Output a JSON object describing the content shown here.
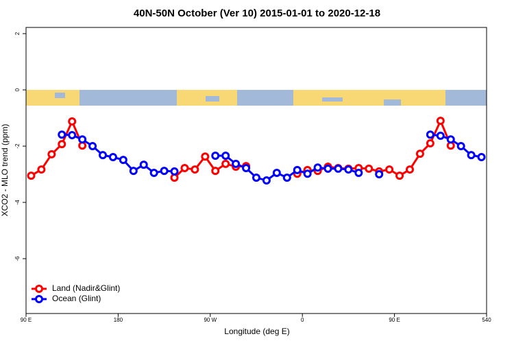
{
  "chart_data": {
    "type": "line",
    "title": "40N-50N October (Ver 10)   2015-01-01 to 2020-12-18",
    "x_label": "Longitude (deg E)",
    "y_label": "XCO2 - MLO trend (ppm)",
    "x": [
      95,
      105,
      115,
      125,
      135,
      145,
      155,
      165,
      175,
      185,
      195,
      205,
      215,
      225,
      235,
      245,
      255,
      265,
      275,
      285,
      295,
      305,
      315,
      325,
      335,
      345,
      355,
      365,
      375,
      385,
      395,
      405,
      415,
      425,
      435,
      445,
      455,
      465,
      475,
      485,
      495,
      505,
      515,
      525,
      535
    ],
    "series": [
      {
        "name": "Land (Nadir&Glint)",
        "color": "#ff0000",
        "values": [
          -3.05,
          -2.83,
          -2.29,
          -1.93,
          -1.12,
          -1.98,
          null,
          null,
          null,
          null,
          null,
          null,
          null,
          null,
          -3.12,
          -2.78,
          -2.83,
          -2.37,
          -2.88,
          -2.63,
          -2.73,
          -2.71,
          null,
          null,
          null,
          null,
          -2.98,
          -2.85,
          -2.88,
          -2.73,
          -2.78,
          -2.8,
          -2.78,
          -2.8,
          -2.9,
          -2.83,
          -3.05,
          -2.83,
          -2.27,
          -1.9,
          -1.1,
          -1.98,
          null,
          null,
          null
        ]
      },
      {
        "name": "Ocean (Glint)",
        "color": "#0000ff",
        "values": [
          null,
          null,
          null,
          -1.59,
          -1.61,
          -1.76,
          -2.0,
          -2.32,
          -2.39,
          -2.49,
          -2.88,
          -2.66,
          -2.95,
          -2.88,
          -2.9,
          null,
          null,
          null,
          -2.34,
          -2.34,
          -2.63,
          -2.78,
          -3.12,
          -3.22,
          -2.95,
          -3.12,
          -2.85,
          -2.98,
          -2.76,
          -2.8,
          -2.8,
          -2.83,
          -2.95,
          null,
          -3.0,
          null,
          null,
          null,
          null,
          -1.59,
          -1.63,
          -1.76,
          -2.0,
          -2.32,
          -2.39
        ]
      }
    ],
    "xlim": [
      90,
      540
    ],
    "xticks": [
      {
        "value": 90,
        "label": "90 E"
      },
      180,
      {
        "value": 270,
        "label": "90 W"
      },
      {
        "value": 360,
        "label": "0"
      },
      {
        "value": 450,
        "label": "90 E"
      },
      540
    ],
    "ylim": [
      -7.95,
      2.22
    ],
    "yticks": [
      2,
      0,
      -2,
      -4,
      -6
    ],
    "legend": "bottomleft"
  }
}
